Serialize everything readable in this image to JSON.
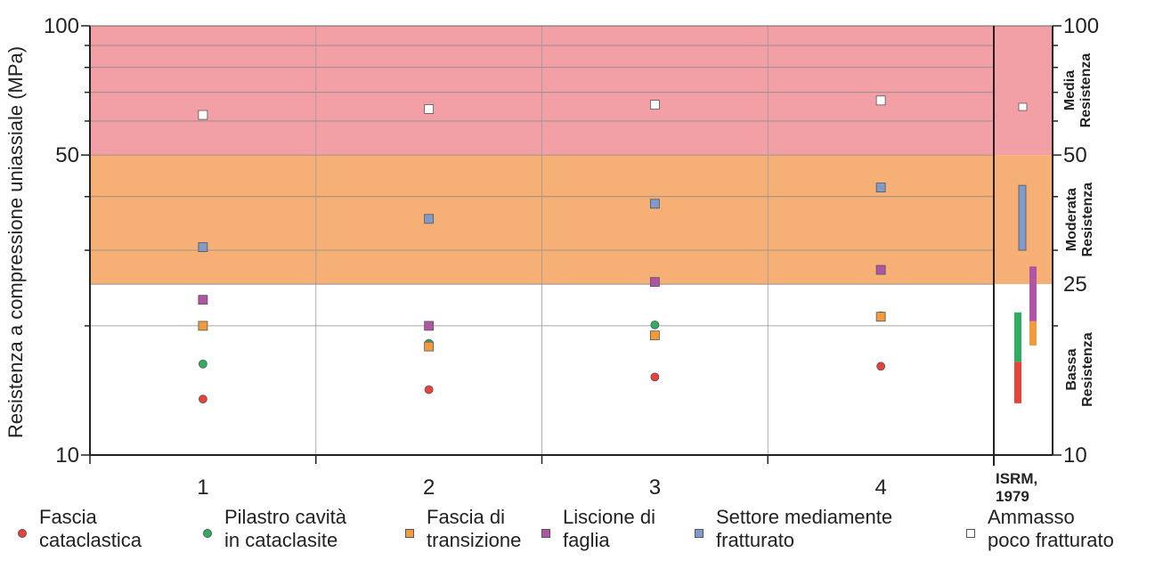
{
  "chart_data": {
    "type": "scatter",
    "ylabel": "Resistenza a compressione uniassiale (MPa)",
    "yscale": "log",
    "ylim": [
      10,
      100
    ],
    "y_ticks_left": [
      "100",
      "50",
      "10"
    ],
    "y_ticks_right": [
      "100",
      "50",
      "25",
      "10"
    ],
    "categories": [
      "1",
      "2",
      "3",
      "4"
    ],
    "reference_column_label": "ISRM,\n1979",
    "grid": true,
    "bands": [
      {
        "label": "Media\nResistenza",
        "from": 50,
        "to": 100,
        "color": "#f2a0a6"
      },
      {
        "label": "Moderata\nResistenza",
        "from": 25,
        "to": 50,
        "color": "#f6b075"
      },
      {
        "label": "Bassa\nResistenza",
        "from": 10,
        "to": 25,
        "color": "#ffffff"
      }
    ],
    "series": [
      {
        "name": "Fascia\ncataclastica",
        "marker": "circle",
        "color": "#e8423c",
        "values": [
          13.5,
          14.2,
          15.2,
          16.1
        ],
        "range": [
          13.2,
          16.5
        ]
      },
      {
        "name": "Pilastro cavità\nin cataclasite",
        "marker": "circle",
        "color": "#2fae62",
        "values": [
          16.3,
          18.2,
          20.1,
          21.1
        ],
        "range": [
          16.5,
          21.5
        ]
      },
      {
        "name": "Fascia di\ntransizione",
        "marker": "square",
        "color": "#f39a3e",
        "values": [
          20.0,
          17.9,
          19.0,
          21.0
        ],
        "range": [
          18.0,
          20.5
        ]
      },
      {
        "name": "Liscione di\nfaglia",
        "marker": "square",
        "color": "#b054a4",
        "values": [
          23.0,
          20.0,
          25.3,
          27.0
        ],
        "range": [
          20.5,
          27.5
        ]
      },
      {
        "name": "Settore mediamente\nfratturato",
        "marker": "square",
        "color": "#7f9acb",
        "values": [
          30.5,
          35.5,
          38.5,
          42.0
        ],
        "range": [
          30.0,
          42.5
        ]
      },
      {
        "name": "Ammasso\npoco fratturato",
        "marker": "square",
        "color": "#ffffff",
        "values": [
          62.0,
          64.0,
          65.5,
          67.0
        ],
        "range": [
          63.5,
          66.0
        ]
      }
    ]
  }
}
